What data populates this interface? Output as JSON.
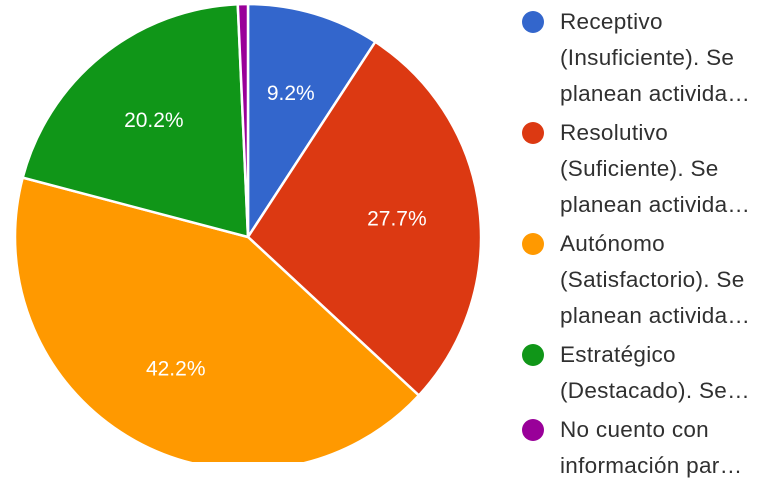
{
  "chart_data": {
    "type": "pie",
    "start_angle_deg": 90,
    "direction": "clockwise",
    "slices": [
      {
        "label": "Receptivo (Insuficiente). Se planean activida…",
        "lines": [
          "Receptivo",
          "(Insuficiente). Se",
          "planean activida…"
        ],
        "value": 9.2,
        "value_label": "9.2%",
        "color": "#3366cc",
        "show_label": true
      },
      {
        "label": "Resolutivo (Suficiente). Se planean activida…",
        "lines": [
          "Resolutivo",
          "(Suficiente). Se",
          "planean activida…"
        ],
        "value": 27.7,
        "value_label": "27.7%",
        "color": "#dc3912",
        "show_label": true
      },
      {
        "label": "Autónomo (Satisfactorio). Se planean activida…",
        "lines": [
          "Autónomo",
          "(Satisfactorio). Se",
          "planean activida…"
        ],
        "value": 42.2,
        "value_label": "42.2%",
        "color": "#ff9900",
        "show_label": true
      },
      {
        "label": "Estratégico (Destacado). Se…",
        "lines": [
          "Estratégico",
          "(Destacado). Se…"
        ],
        "value": 20.2,
        "value_label": "20.2%",
        "color": "#109618",
        "show_label": true
      },
      {
        "label": "No cuento con información par…",
        "lines": [
          "No cuento con",
          "información par…"
        ],
        "value": 0.7,
        "value_label": "",
        "color": "#990099",
        "show_label": false
      }
    ],
    "legend_position": "right"
  }
}
